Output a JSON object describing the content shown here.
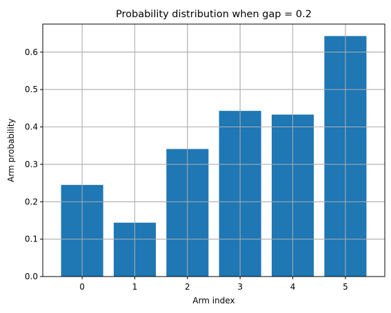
{
  "chart_data": {
    "type": "bar",
    "title": "Probability distribution when gap = 0.2",
    "xlabel": "Arm index",
    "ylabel": "Arm probability",
    "categories": [
      "0",
      "1",
      "2",
      "3",
      "4",
      "5"
    ],
    "values": [
      0.245,
      0.144,
      0.341,
      0.443,
      0.433,
      0.643
    ],
    "ylim": [
      0.0,
      0.675
    ],
    "yticks": [
      0.0,
      0.1,
      0.2,
      0.3,
      0.4,
      0.5,
      0.6
    ],
    "ytick_labels": [
      "0.0",
      "0.1",
      "0.2",
      "0.3",
      "0.4",
      "0.5",
      "0.6"
    ],
    "grid": true,
    "bar_color": "#1f77b4",
    "grid_color": "#b0b0b0"
  }
}
